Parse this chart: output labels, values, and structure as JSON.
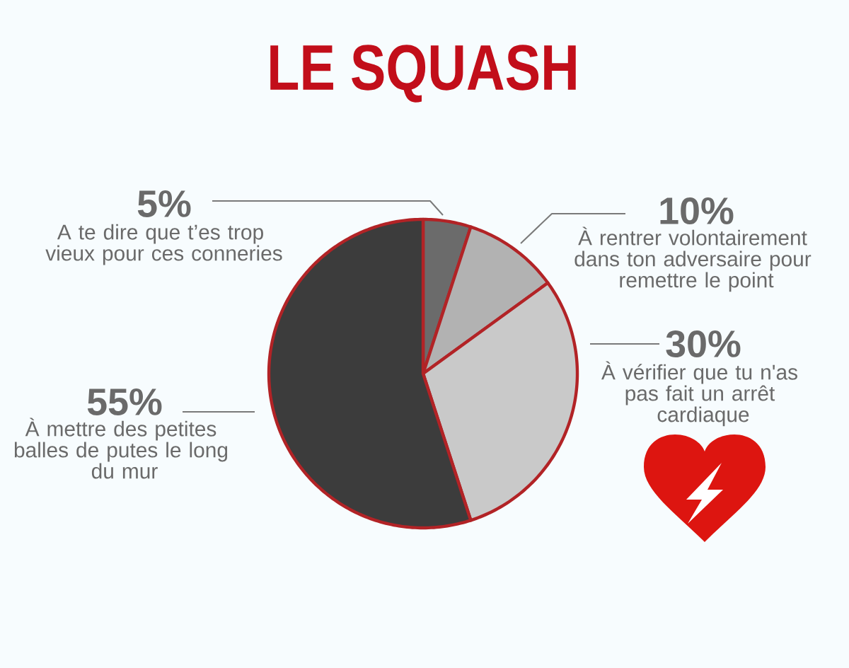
{
  "chart_data": {
    "type": "pie",
    "title": "LE SQUASH",
    "categories": [
      "A te dire que t’es trop vieux pour ces conneries",
      "À rentrer volontairement dans ton adversaire pour remettre le point",
      "À vérifier que tu n'as pas fait un arrêt cardiaque",
      "À mettre des petites balles de putes le long du mur"
    ],
    "values": [
      5,
      10,
      30,
      55
    ],
    "colors": [
      "#6b6b6b",
      "#b2b2b2",
      "#c9c9c9",
      "#3c3c3c"
    ],
    "value_labels": [
      "5%",
      "10%",
      "30%",
      "55%"
    ]
  }
}
